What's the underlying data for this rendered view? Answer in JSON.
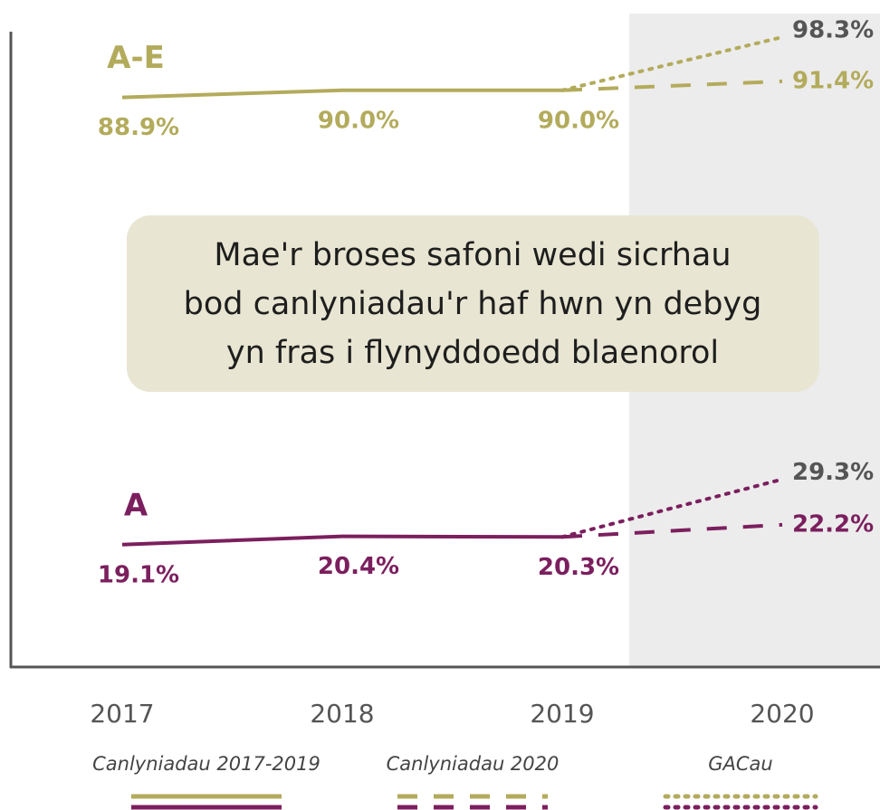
{
  "chart_data": {
    "type": "line",
    "categories": [
      "2017",
      "2018",
      "2019",
      "2020"
    ],
    "ylim": [
      0,
      100
    ],
    "groups": [
      {
        "label": "A-E",
        "color": "#b3ab5c"
      },
      {
        "label": "A",
        "color": "#7b1f5e"
      }
    ],
    "series": [
      {
        "name": "Canlyniadau 2017-2019",
        "style": "solid",
        "values": [
          [
            88.9,
            90.0,
            90.0,
            null
          ],
          [
            19.1,
            20.4,
            20.3,
            null
          ]
        ],
        "value_labels": [
          [
            "88.9%",
            "90.0%",
            "90.0%",
            null
          ],
          [
            "19.1%",
            "20.4%",
            "20.3%",
            null
          ]
        ]
      },
      {
        "name": "Canlyniadau 2020",
        "style": "dashed",
        "values": [
          [
            null,
            null,
            90.0,
            91.4
          ],
          [
            null,
            null,
            20.3,
            22.2
          ]
        ],
        "value_labels": [
          [
            null,
            null,
            null,
            "91.4%"
          ],
          [
            null,
            null,
            null,
            "22.2%"
          ]
        ]
      },
      {
        "name": "GACau",
        "style": "dotted",
        "label_color": "#555555",
        "values": [
          [
            null,
            null,
            90.0,
            98.3
          ],
          [
            null,
            null,
            20.3,
            29.3
          ]
        ],
        "value_labels": [
          [
            null,
            null,
            null,
            "98.3%"
          ],
          [
            null,
            null,
            null,
            "29.3%"
          ]
        ]
      }
    ],
    "annotation": [
      "Mae'r broses safoni wedi sicrhau",
      "bod canlyniadau'r haf hwn yn debyg",
      "yn fras i flynyddoedd blaenorol"
    ]
  }
}
